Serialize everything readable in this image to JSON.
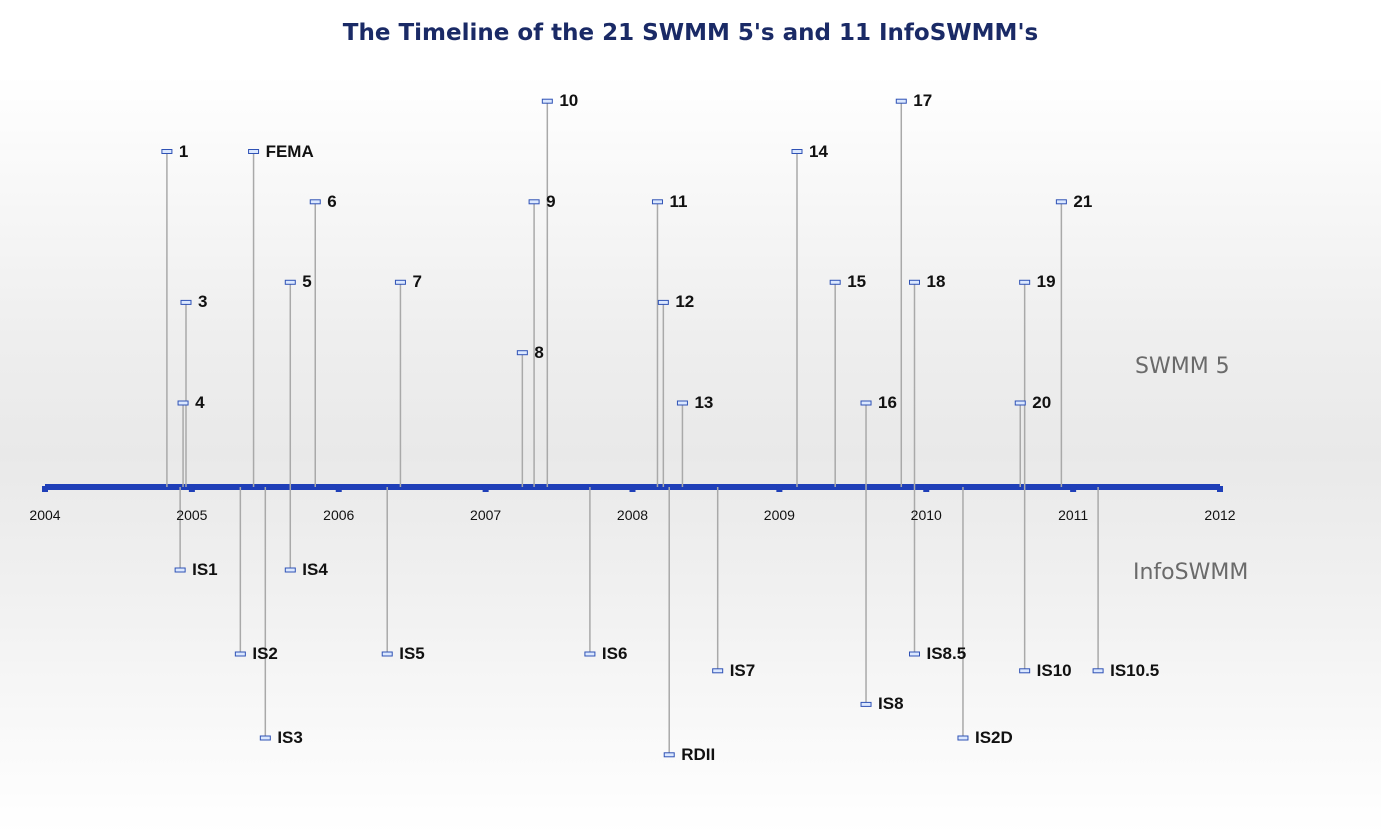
{
  "title": "The Timeline of the 21 SWMM 5's and 11 InfoSWMM's",
  "colors": {
    "title": "#1a2a66",
    "axis": "#1f3fb8",
    "stem": "#a9a9a9",
    "marker_fill": "#dbe8ff",
    "marker_stroke": "#2f52b5",
    "section_label": "#6a6a6a"
  },
  "sections": {
    "upper": "SWMM 5",
    "lower": "InfoSWMM"
  },
  "chart_data": {
    "type": "timeline",
    "x_range": [
      2004,
      2012
    ],
    "years": [
      "2004",
      "2005",
      "2006",
      "2007",
      "2008",
      "2009",
      "2010",
      "2011",
      "2012"
    ],
    "swmm5": [
      {
        "label": "1",
        "date": 2004.83,
        "level": 6
      },
      {
        "label": "FEMA",
        "date": 2005.42,
        "level": 6
      },
      {
        "label": "3",
        "date": 2004.96,
        "level": 3
      },
      {
        "label": "4",
        "date": 2004.94,
        "level": 1
      },
      {
        "label": "5",
        "date": 2005.67,
        "level": 3.4
      },
      {
        "label": "6",
        "date": 2005.84,
        "level": 5
      },
      {
        "label": "7",
        "date": 2006.42,
        "level": 3.4
      },
      {
        "label": "8",
        "date": 2007.25,
        "level": 2
      },
      {
        "label": "9",
        "date": 2007.33,
        "level": 5
      },
      {
        "label": "10",
        "date": 2007.42,
        "level": 7
      },
      {
        "label": "11",
        "date": 2008.17,
        "level": 5
      },
      {
        "label": "12",
        "date": 2008.21,
        "level": 3
      },
      {
        "label": "13",
        "date": 2008.34,
        "level": 1
      },
      {
        "label": "14",
        "date": 2009.12,
        "level": 6
      },
      {
        "label": "15",
        "date": 2009.38,
        "level": 3.4
      },
      {
        "label": "16",
        "date": 2009.59,
        "level": 1
      },
      {
        "label": "17",
        "date": 2009.83,
        "level": 7
      },
      {
        "label": "18",
        "date": 2009.92,
        "level": 3.4
      },
      {
        "label": "19",
        "date": 2010.67,
        "level": 3.4
      },
      {
        "label": "20",
        "date": 2010.64,
        "level": 1
      },
      {
        "label": "21",
        "date": 2010.92,
        "level": 5
      }
    ],
    "infoswmm": [
      {
        "label": "IS1",
        "date": 2004.92,
        "level": 1
      },
      {
        "label": "IS4",
        "date": 2005.67,
        "level": 1
      },
      {
        "label": "IS2",
        "date": 2005.33,
        "level": 2
      },
      {
        "label": "IS3",
        "date": 2005.5,
        "level": 3
      },
      {
        "label": "IS5",
        "date": 2006.33,
        "level": 2
      },
      {
        "label": "IS6",
        "date": 2007.71,
        "level": 2
      },
      {
        "label": "RDII",
        "date": 2008.25,
        "level": 3.2
      },
      {
        "label": "IS7",
        "date": 2008.58,
        "level": 2.2
      },
      {
        "label": "IS8",
        "date": 2009.59,
        "level": 2.6
      },
      {
        "label": "IS8.5",
        "date": 2009.92,
        "level": 2
      },
      {
        "label": "IS2D",
        "date": 2010.25,
        "level": 3
      },
      {
        "label": "IS10",
        "date": 2010.67,
        "level": 2.2
      },
      {
        "label": "IS10.5",
        "date": 2011.17,
        "level": 2.2
      }
    ]
  }
}
